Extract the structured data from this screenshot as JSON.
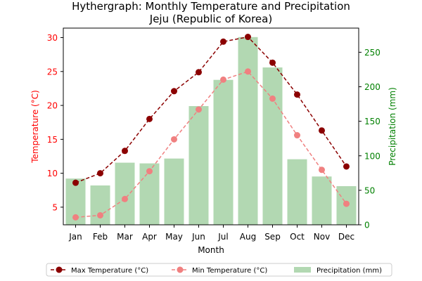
{
  "chart_data": {
    "type": "bar",
    "title": "Hythergraph: Monthly Temperature and Precipitation",
    "subtitle": "Jeju (Republic of Korea)",
    "xlabel": "Month",
    "ylabel_left": "Temperature (°C)",
    "ylabel_right": "Precipitation (mm)",
    "categories": [
      "Jan",
      "Feb",
      "Mar",
      "Apr",
      "May",
      "Jun",
      "Jul",
      "Aug",
      "Sep",
      "Oct",
      "Nov",
      "Dec"
    ],
    "ylim_left": [
      2.4,
      31.4
    ],
    "ylim_right": [
      0,
      285
    ],
    "yticks_left": [
      5,
      10,
      15,
      20,
      25,
      30
    ],
    "yticks_right": [
      0,
      50,
      100,
      150,
      200,
      250
    ],
    "grid": false,
    "legend_placement": "bottom-center",
    "series": [
      {
        "name": "Max Temperature (°C)",
        "type": "line",
        "axis": "left",
        "color": "#8b0000",
        "line_style": "dashed",
        "marker": "circle",
        "values": [
          8.6,
          10.0,
          13.3,
          18.0,
          22.1,
          24.9,
          29.4,
          30.1,
          26.3,
          21.6,
          16.3,
          11.0
        ]
      },
      {
        "name": "Min Temperature (°C)",
        "type": "line",
        "axis": "left",
        "color": "#f08080",
        "line_style": "dashed",
        "marker": "circle",
        "values": [
          3.5,
          3.8,
          6.2,
          10.3,
          15.0,
          19.4,
          23.8,
          25.0,
          21.0,
          15.6,
          10.5,
          5.5
        ]
      },
      {
        "name": "Precipitation (mm)",
        "type": "bar",
        "axis": "right",
        "color": "#b2d8b2",
        "values": [
          67,
          57,
          90,
          89,
          96,
          172,
          210,
          272,
          228,
          95,
          70,
          56
        ]
      }
    ],
    "colors": {
      "left_axis": "#ff0000",
      "right_axis": "#008000",
      "axis": "#000000"
    }
  }
}
